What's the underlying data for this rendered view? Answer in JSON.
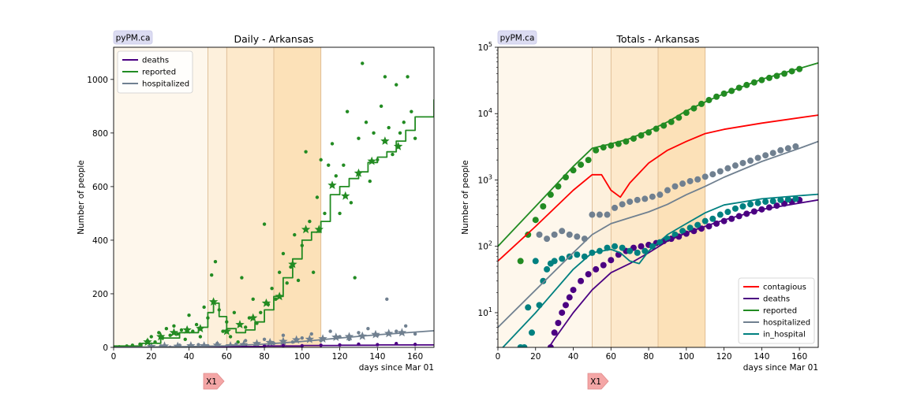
{
  "badge_text": "pyPM.ca",
  "marker_label": "X1",
  "chart_data": [
    {
      "type": "line",
      "title": "Daily - Arkansas",
      "xlabel": "days since Mar 01",
      "ylabel": "Number of people",
      "xlim": [
        0,
        170
      ],
      "ylim": [
        0,
        1120
      ],
      "yscale": "linear",
      "xticks": [
        0,
        20,
        40,
        60,
        80,
        100,
        120,
        140,
        160
      ],
      "yticks": [
        0,
        200,
        400,
        600,
        800,
        1000
      ],
      "legend_position": "upper-left",
      "grid": false,
      "shaded_periods": [
        [
          0,
          50
        ],
        [
          50,
          60
        ],
        [
          60,
          85
        ],
        [
          85,
          110
        ]
      ],
      "series": [
        {
          "name": "deaths",
          "color": "#4b0082",
          "kind": "step",
          "x": [
            0,
            40,
            60,
            80,
            100,
            120,
            140,
            170
          ],
          "y": [
            0,
            1,
            3,
            5,
            7,
            8,
            9,
            10
          ]
        },
        {
          "name": "reported",
          "color": "#228b22",
          "kind": "step",
          "x": [
            0,
            15,
            25,
            35,
            45,
            50,
            53,
            56,
            60,
            65,
            70,
            75,
            80,
            85,
            90,
            95,
            100,
            105,
            110,
            115,
            120,
            125,
            130,
            135,
            140,
            145,
            150,
            155,
            160,
            170
          ],
          "y": [
            5,
            15,
            35,
            55,
            75,
            130,
            165,
            115,
            70,
            55,
            65,
            95,
            140,
            190,
            260,
            330,
            400,
            430,
            470,
            570,
            600,
            630,
            655,
            690,
            710,
            730,
            770,
            810,
            860,
            925
          ]
        },
        {
          "name": "hospitalized",
          "color": "#708090",
          "kind": "line",
          "x": [
            0,
            40,
            60,
            80,
            100,
            120,
            140,
            170
          ],
          "y": [
            0,
            3,
            6,
            12,
            22,
            35,
            47,
            62
          ]
        }
      ],
      "scatter": [
        {
          "series": "reported",
          "color": "#228b22",
          "x": [
            3,
            7,
            10,
            14,
            18,
            20,
            22,
            24,
            26,
            28,
            30,
            32,
            34,
            36,
            38,
            40,
            42,
            44,
            46,
            48,
            50,
            52,
            54,
            56,
            58,
            60,
            62,
            64,
            66,
            68,
            70,
            72,
            74,
            76,
            78,
            80,
            82,
            84,
            86,
            88,
            90,
            92,
            94,
            96,
            98,
            100,
            102,
            104,
            106,
            108,
            110,
            112,
            114,
            116,
            118,
            120,
            122,
            124,
            126,
            128,
            130,
            132,
            134,
            136,
            138,
            140,
            142,
            144,
            146,
            148,
            150,
            152,
            154,
            156,
            158,
            160
          ],
          "y": [
            2,
            5,
            8,
            12,
            25,
            40,
            20,
            55,
            35,
            70,
            45,
            80,
            50,
            65,
            30,
            120,
            60,
            85,
            40,
            150,
            110,
            270,
            320,
            140,
            60,
            95,
            40,
            130,
            20,
            260,
            75,
            110,
            180,
            90,
            130,
            460,
            160,
            220,
            180,
            280,
            350,
            240,
            300,
            420,
            250,
            380,
            730,
            470,
            280,
            560,
            700,
            500,
            680,
            760,
            640,
            500,
            680,
            880,
            540,
            260,
            780,
            1060,
            840,
            620,
            800,
            700,
            900,
            1010,
            820,
            720,
            980,
            800,
            840,
            1010,
            880,
            780
          ]
        },
        {
          "series": "deaths",
          "color": "#4b0082",
          "x": [
            20,
            30,
            40,
            50,
            60,
            70,
            80,
            90,
            100,
            110,
            120,
            130,
            140,
            150,
            160
          ],
          "y": [
            0,
            0,
            1,
            2,
            3,
            4,
            5,
            7,
            6,
            8,
            9,
            12,
            10,
            14,
            11
          ]
        },
        {
          "series": "hospitalized",
          "color": "#708090",
          "x": [
            20,
            25,
            30,
            35,
            40,
            45,
            50,
            55,
            60,
            65,
            70,
            75,
            80,
            85,
            90,
            95,
            100,
            105,
            110,
            115,
            120,
            125,
            130,
            135,
            140,
            145,
            150,
            155,
            160
          ],
          "y": [
            2,
            5,
            0,
            8,
            3,
            10,
            6,
            15,
            5,
            12,
            25,
            8,
            30,
            15,
            45,
            20,
            35,
            50,
            25,
            60,
            40,
            30,
            55,
            70,
            45,
            180,
            60,
            80,
            50
          ]
        }
      ],
      "weekly_stars": [
        {
          "series": "reported",
          "color": "#228b22",
          "x": [
            18,
            25,
            32,
            39,
            46,
            53,
            60,
            67,
            74,
            81,
            88,
            95,
            102,
            109,
            116,
            123,
            130,
            137,
            144,
            151
          ],
          "y": [
            20,
            40,
            55,
            65,
            70,
            170,
            60,
            85,
            110,
            165,
            190,
            310,
            440,
            440,
            605,
            565,
            650,
            695,
            770,
            750
          ]
        },
        {
          "series": "hospitalized",
          "color": "#708090",
          "x": [
            20,
            27,
            34,
            41,
            48,
            55,
            62,
            69,
            76,
            83,
            90,
            97,
            104,
            111,
            118,
            125,
            132,
            139,
            146,
            153
          ],
          "y": [
            3,
            5,
            4,
            6,
            6,
            8,
            6,
            10,
            14,
            18,
            22,
            28,
            30,
            32,
            38,
            40,
            42,
            48,
            52,
            55
          ]
        }
      ]
    },
    {
      "type": "line",
      "title": "Totals - Arkansas",
      "xlabel": "days since Mar 01",
      "ylabel": "Number of people",
      "xlim": [
        0,
        170
      ],
      "ylim": [
        3,
        100000
      ],
      "yscale": "log",
      "xticks": [
        0,
        20,
        40,
        60,
        80,
        100,
        120,
        140,
        160
      ],
      "yticks": [
        "10^1",
        "10^2",
        "10^3",
        "10^4",
        "10^5"
      ],
      "legend_position": "lower-right",
      "grid": false,
      "shaded_periods": [
        [
          0,
          50
        ],
        [
          50,
          60
        ],
        [
          60,
          85
        ],
        [
          85,
          110
        ]
      ],
      "series": [
        {
          "name": "contagious",
          "color": "#ff0000",
          "x": [
            0,
            20,
            40,
            50,
            55,
            60,
            65,
            70,
            80,
            90,
            100,
            110,
            120,
            140,
            170
          ],
          "y": [
            60,
            200,
            700,
            1200,
            1200,
            700,
            550,
            900,
            1800,
            2800,
            3800,
            5000,
            5800,
            7200,
            9500
          ]
        },
        {
          "name": "deaths",
          "color": "#4b0082",
          "x": [
            20,
            30,
            40,
            50,
            60,
            70,
            80,
            90,
            100,
            110,
            120,
            140,
            170
          ],
          "y": [
            1,
            4,
            10,
            22,
            40,
            55,
            80,
            120,
            160,
            200,
            250,
            360,
            500
          ]
        },
        {
          "name": "reported",
          "color": "#228b22",
          "x": [
            0,
            20,
            40,
            50,
            60,
            70,
            80,
            90,
            100,
            110,
            120,
            140,
            160,
            170
          ],
          "y": [
            100,
            400,
            1600,
            3000,
            3500,
            4200,
            5500,
            7500,
            11000,
            15000,
            20000,
            33000,
            48000,
            58000
          ]
        },
        {
          "name": "hospitalized",
          "color": "#708090",
          "x": [
            0,
            20,
            40,
            50,
            60,
            70,
            80,
            90,
            100,
            110,
            120,
            140,
            160,
            170
          ],
          "y": [
            6,
            22,
            80,
            150,
            220,
            270,
            330,
            430,
            600,
            800,
            1100,
            1900,
            3000,
            3800
          ]
        },
        {
          "name": "in_hospital",
          "color": "#008080",
          "x": [
            0,
            20,
            40,
            50,
            60,
            65,
            70,
            75,
            80,
            90,
            100,
            110,
            120,
            140,
            160,
            170
          ],
          "y": [
            2.5,
            10,
            45,
            80,
            90,
            80,
            60,
            55,
            85,
            150,
            220,
            320,
            420,
            520,
            580,
            610
          ]
        }
      ],
      "scatter": [
        {
          "series": "reported",
          "color": "#228b22",
          "x": [
            12,
            16,
            20,
            24,
            28,
            32,
            36,
            40,
            44,
            48,
            52,
            56,
            60,
            64,
            68,
            72,
            76,
            80,
            84,
            88,
            92,
            96,
            100,
            104,
            108,
            112,
            116,
            120,
            124,
            128,
            132,
            136,
            140,
            144,
            148,
            152,
            156,
            160
          ],
          "y": [
            60,
            150,
            250,
            400,
            600,
            800,
            1100,
            1400,
            1700,
            2000,
            2800,
            3100,
            3300,
            3500,
            3800,
            4200,
            4700,
            5200,
            5900,
            6600,
            7500,
            8700,
            10300,
            12000,
            14000,
            16000,
            18000,
            20000,
            22000,
            24500,
            27000,
            29500,
            32000,
            34500,
            37000,
            40000,
            43500,
            47000
          ]
        },
        {
          "series": "hospitalized",
          "color": "#708090",
          "x": [
            22,
            26,
            30,
            34,
            38,
            42,
            46,
            50,
            54,
            58,
            62,
            66,
            70,
            74,
            78,
            82,
            86,
            90,
            94,
            98,
            102,
            106,
            110,
            114,
            118,
            122,
            126,
            130,
            134,
            138,
            142,
            146,
            150,
            154,
            158
          ],
          "y": [
            150,
            130,
            150,
            170,
            150,
            140,
            130,
            300,
            300,
            300,
            380,
            430,
            470,
            500,
            520,
            560,
            600,
            700,
            800,
            880,
            960,
            1020,
            1120,
            1220,
            1350,
            1500,
            1650,
            1800,
            1950,
            2150,
            2350,
            2550,
            2800,
            3000,
            3200
          ]
        },
        {
          "series": "deaths",
          "color": "#4b0082",
          "x": [
            28,
            30,
            32,
            34,
            36,
            38,
            40,
            44,
            48,
            52,
            56,
            60,
            64,
            68,
            72,
            76,
            80,
            84,
            88,
            92,
            96,
            100,
            104,
            108,
            112,
            116,
            120,
            124,
            128,
            132,
            136,
            140,
            144,
            148,
            152,
            156,
            160
          ],
          "y": [
            3,
            5,
            7,
            10,
            13,
            17,
            22,
            30,
            38,
            45,
            52,
            62,
            75,
            85,
            95,
            100,
            105,
            112,
            120,
            130,
            140,
            155,
            170,
            185,
            200,
            220,
            240,
            260,
            285,
            310,
            335,
            360,
            385,
            410,
            440,
            470,
            500
          ]
        },
        {
          "series": "in_hospital",
          "color": "#008080",
          "x": [
            12,
            14,
            16,
            18,
            20,
            22,
            24,
            26,
            28,
            30,
            34,
            38,
            42,
            46,
            50,
            54,
            58,
            62,
            66,
            70,
            74,
            78,
            82,
            86,
            90,
            94,
            98,
            102,
            106,
            110,
            114,
            118,
            122,
            126,
            130,
            134,
            138,
            142,
            146,
            150,
            154,
            158
          ],
          "y": [
            3,
            3,
            12,
            5,
            60,
            13,
            30,
            45,
            55,
            60,
            65,
            70,
            75,
            70,
            80,
            85,
            95,
            100,
            95,
            85,
            80,
            85,
            100,
            115,
            130,
            150,
            170,
            190,
            210,
            240,
            260,
            300,
            330,
            370,
            400,
            430,
            450,
            470,
            480,
            500,
            510,
            520
          ]
        }
      ]
    }
  ]
}
